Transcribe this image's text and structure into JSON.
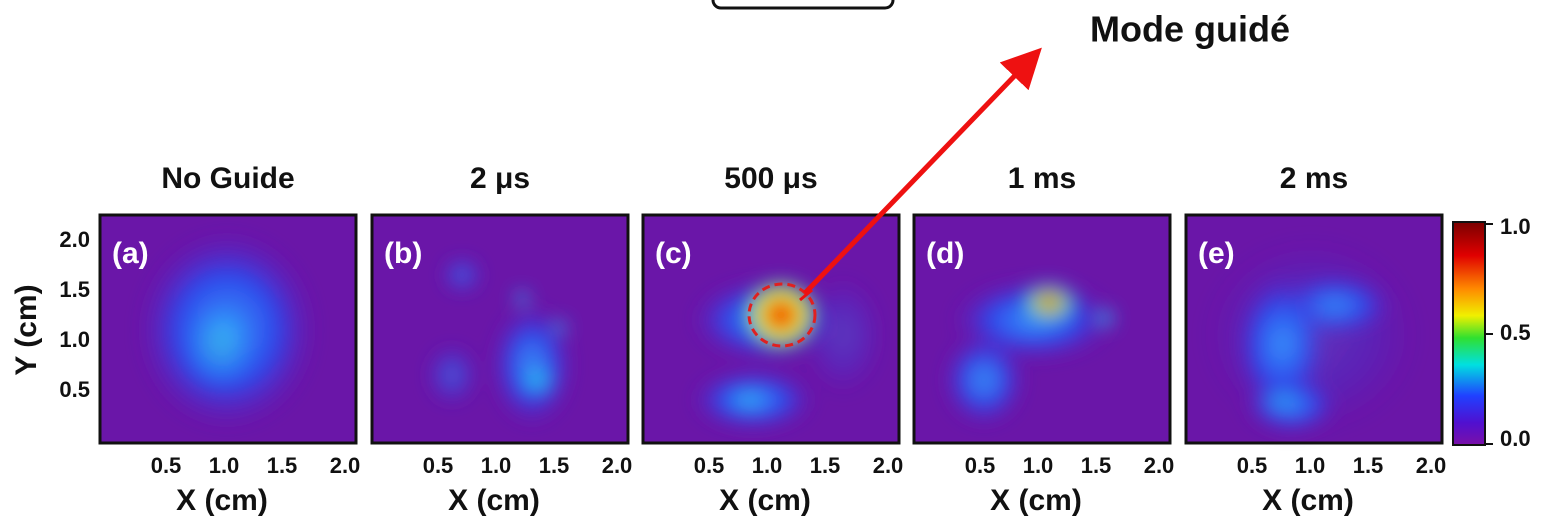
{
  "annotation": "Mode guidé",
  "panels": [
    {
      "title": "No Guide",
      "label": "(a)"
    },
    {
      "title": "2 μs",
      "label": "(b)"
    },
    {
      "title": "500 μs",
      "label": "(c)"
    },
    {
      "title": "1 ms",
      "label": "(d)"
    },
    {
      "title": "2 ms",
      "label": "(e)"
    }
  ],
  "x_axis": {
    "label": "X (cm)",
    "ticks": [
      "0.5",
      "1.0",
      "1.5",
      "2.0"
    ]
  },
  "y_axis": {
    "label": "Y (cm)",
    "ticks": [
      "2.0",
      "1.5",
      "1.0",
      "0.5"
    ]
  },
  "colorbar": {
    "ticks": [
      "1.0",
      "0.5",
      "0.0"
    ]
  }
}
